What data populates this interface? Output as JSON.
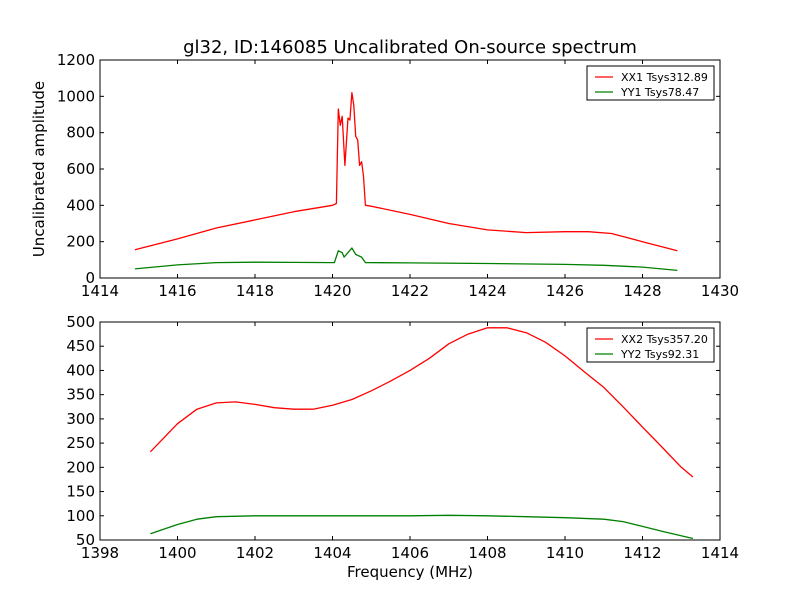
{
  "chart_data": [
    {
      "type": "line",
      "title": "gl32, ID:146085 Uncalibrated On-source spectrum",
      "xlabel": "",
      "ylabel": "Uncalibrated amplitude",
      "xlim": [
        1414,
        1430
      ],
      "ylim": [
        0,
        1200
      ],
      "xticks": [
        1414,
        1416,
        1418,
        1420,
        1422,
        1424,
        1426,
        1428,
        1430
      ],
      "yticks": [
        0,
        200,
        400,
        600,
        800,
        1000,
        1200
      ],
      "grid": false,
      "legend_position": "top-right",
      "series": [
        {
          "name": "XX1 Tsys312.89",
          "color": "#ff0000",
          "x": [
            1414.9,
            1416,
            1417,
            1418,
            1419,
            1420,
            1420.1,
            1420.15,
            1420.2,
            1420.25,
            1420.3,
            1420.32,
            1420.4,
            1420.45,
            1420.5,
            1420.55,
            1420.6,
            1420.65,
            1420.7,
            1420.75,
            1420.8,
            1420.85,
            1421,
            1422,
            1423,
            1424,
            1425,
            1426,
            1426.6,
            1427.2,
            1428,
            1428.9
          ],
          "y": [
            155,
            215,
            275,
            320,
            365,
            400,
            410,
            930,
            840,
            890,
            700,
            620,
            880,
            870,
            1020,
            950,
            780,
            760,
            620,
            640,
            560,
            400,
            395,
            350,
            300,
            265,
            250,
            255,
            255,
            245,
            200,
            150
          ]
        },
        {
          "name": "YY1 Tsys78.47",
          "color": "#008000",
          "x": [
            1414.9,
            1416,
            1417,
            1418,
            1419,
            1420.05,
            1420.15,
            1420.25,
            1420.3,
            1420.4,
            1420.5,
            1420.6,
            1420.75,
            1420.85,
            1422,
            1424,
            1426,
            1427,
            1428,
            1428.9
          ],
          "y": [
            50,
            72,
            85,
            87,
            86,
            85,
            150,
            140,
            115,
            140,
            165,
            130,
            115,
            85,
            83,
            80,
            75,
            70,
            60,
            42
          ]
        }
      ]
    },
    {
      "type": "line",
      "title": "",
      "xlabel": "Frequency (MHz)",
      "ylabel": "",
      "xlim": [
        1398,
        1414
      ],
      "ylim": [
        50,
        500
      ],
      "xticks": [
        1398,
        1400,
        1402,
        1404,
        1406,
        1408,
        1410,
        1412,
        1414
      ],
      "yticks": [
        50,
        100,
        150,
        200,
        250,
        300,
        350,
        400,
        450,
        500
      ],
      "grid": false,
      "legend_position": "top-right",
      "series": [
        {
          "name": "XX2 Tsys357.20",
          "color": "#ff0000",
          "x": [
            1399.3,
            1400,
            1400.5,
            1401,
            1401.5,
            1402,
            1402.5,
            1403,
            1403.5,
            1404,
            1404.5,
            1405,
            1405.5,
            1406,
            1406.5,
            1407,
            1407.5,
            1408,
            1408.5,
            1409,
            1409.5,
            1410,
            1410.5,
            1411,
            1411.5,
            1412,
            1412.5,
            1413,
            1413.3
          ],
          "y": [
            232,
            290,
            320,
            333,
            335,
            330,
            323,
            320,
            320,
            328,
            340,
            358,
            378,
            400,
            425,
            455,
            475,
            488,
            488,
            478,
            458,
            430,
            397,
            365,
            325,
            283,
            242,
            200,
            180
          ]
        },
        {
          "name": "YY2 Tsys92.31",
          "color": "#008000",
          "x": [
            1399.3,
            1400,
            1400.5,
            1401,
            1402,
            1404,
            1406,
            1407,
            1408,
            1409,
            1410,
            1411,
            1411.5,
            1412,
            1412.5,
            1413.3
          ],
          "y": [
            63,
            82,
            93,
            98,
            100,
            100,
            100,
            101,
            100,
            98,
            96,
            93,
            88,
            78,
            68,
            53
          ]
        }
      ]
    }
  ]
}
